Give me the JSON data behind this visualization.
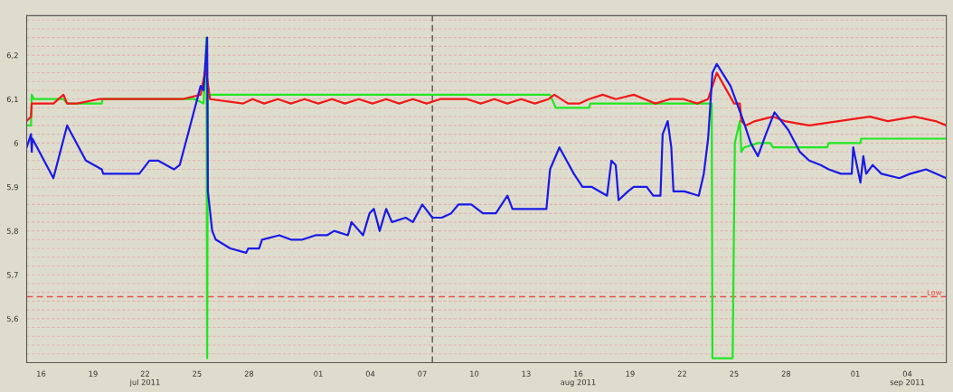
{
  "chart_data": {
    "type": "line",
    "xlim": [
      "2011-07-15T04:00",
      "2011-09-06T06:00"
    ],
    "ylim": [
      5.5,
      6.29
    ],
    "xticks": [
      {
        "value": "2011-07-16",
        "label": "16"
      },
      {
        "value": "2011-07-19",
        "label": "19"
      },
      {
        "value": "2011-07-22",
        "label": "22\njul 2011"
      },
      {
        "value": "2011-07-25",
        "label": "25"
      },
      {
        "value": "2011-07-28",
        "label": "28"
      },
      {
        "value": "2011-08-01",
        "label": "01"
      },
      {
        "value": "2011-08-04",
        "label": "04"
      },
      {
        "value": "2011-08-07",
        "label": "07"
      },
      {
        "value": "2011-08-10",
        "label": "10"
      },
      {
        "value": "2011-08-13",
        "label": "13"
      },
      {
        "value": "2011-08-16",
        "label": "16\naug 2011"
      },
      {
        "value": "2011-08-19",
        "label": "19"
      },
      {
        "value": "2011-08-22",
        "label": "22"
      },
      {
        "value": "2011-08-25",
        "label": "25"
      },
      {
        "value": "2011-08-28",
        "label": "28"
      },
      {
        "value": "2011-09-01",
        "label": "01"
      },
      {
        "value": "2011-09-04",
        "label": "04\nsep 2011"
      }
    ],
    "yticks": [
      {
        "value": 5.5,
        "label": null
      },
      {
        "value": 5.52,
        "label": null
      },
      {
        "value": 5.54,
        "label": null
      },
      {
        "value": 5.56,
        "label": null
      },
      {
        "value": 5.58,
        "label": null
      },
      {
        "value": 5.6,
        "label": "5,6"
      },
      {
        "value": 5.62,
        "label": null
      },
      {
        "value": 5.64,
        "label": null
      },
      {
        "value": 5.66,
        "label": null
      },
      {
        "value": 5.68,
        "label": null
      },
      {
        "value": 5.7,
        "label": "5,7"
      },
      {
        "value": 5.72,
        "label": null
      },
      {
        "value": 5.74,
        "label": null
      },
      {
        "value": 5.76,
        "label": null
      },
      {
        "value": 5.78,
        "label": null
      },
      {
        "value": 5.8,
        "label": "5,8"
      },
      {
        "value": 5.82,
        "label": null
      },
      {
        "value": 5.84,
        "label": null
      },
      {
        "value": 5.86,
        "label": null
      },
      {
        "value": 5.88,
        "label": null
      },
      {
        "value": 5.9,
        "label": "5,9"
      },
      {
        "value": 5.92,
        "label": null
      },
      {
        "value": 5.94,
        "label": null
      },
      {
        "value": 5.96,
        "label": null
      },
      {
        "value": 5.98,
        "label": null
      },
      {
        "value": 6.0,
        "label": "6"
      },
      {
        "value": 6.02,
        "label": null
      },
      {
        "value": 6.04,
        "label": null
      },
      {
        "value": 6.06,
        "label": null
      },
      {
        "value": 6.08,
        "label": null
      },
      {
        "value": 6.1,
        "label": "6,1"
      },
      {
        "value": 6.12,
        "label": null
      },
      {
        "value": 6.14,
        "label": null
      },
      {
        "value": 6.16,
        "label": null
      },
      {
        "value": 6.18,
        "label": null
      },
      {
        "value": 6.2,
        "label": "6,2"
      },
      {
        "value": 6.22,
        "label": null
      },
      {
        "value": 6.24,
        "label": null
      },
      {
        "value": 6.26,
        "label": null
      },
      {
        "value": 6.28,
        "label": null
      }
    ],
    "grid": "y",
    "ref_lines": [
      {
        "axis": "y",
        "value": 5.65,
        "label": "Low",
        "color": "#e85050",
        "line_style": "dashed"
      },
      {
        "axis": "x",
        "value": "2011-08-07T14:00",
        "color": "#555555",
        "line_style": "dashed"
      }
    ],
    "series": [
      {
        "color": "#22e622",
        "x": [
          "2011-07-15T04:00",
          "2011-07-15T10:00",
          "2011-07-15T11:00",
          "2011-07-15T14:00",
          "2011-07-17T07:00",
          "2011-07-17T12:00",
          "2011-07-19T12:00",
          "2011-07-19T13:00",
          "2011-07-24T21:00",
          "2011-07-25T09:00",
          "2011-07-25T13:00",
          "2011-07-25T14:00",
          "2011-07-25T15:00",
          "2011-08-14T09:00",
          "2011-08-14T17:00",
          "2011-08-16T15:00",
          "2011-08-16T17:00",
          "2011-08-23T17:00",
          "2011-08-23T18:00",
          "2011-08-24T22:00",
          "2011-08-25T01:00",
          "2011-08-25T08:00",
          "2011-08-25T10:00",
          "2011-08-25T14:00",
          "2011-08-26T09:00",
          "2011-08-27T02:00",
          "2011-08-27T06:00",
          "2011-08-30T09:00",
          "2011-08-30T11:00",
          "2011-09-01T07:00",
          "2011-09-01T08:00",
          "2011-09-06T06:00"
        ],
        "values": [
          6.04,
          6.04,
          6.11,
          6.1,
          6.1,
          6.09,
          6.09,
          6.1,
          6.1,
          6.09,
          6.24,
          5.51,
          6.11,
          6.11,
          6.08,
          6.08,
          6.09,
          6.09,
          5.51,
          5.51,
          6.0,
          6.05,
          5.98,
          5.99,
          6.0,
          6.0,
          5.99,
          5.99,
          6.0,
          6.0,
          6.01,
          6.01
        ]
      },
      {
        "color": "#f01818",
        "x": [
          "2011-07-15T04:00",
          "2011-07-15T10:00",
          "2011-07-15T11:00",
          "2011-07-16T05:00",
          "2011-07-16T17:00",
          "2011-07-17T07:00",
          "2011-07-17T12:00",
          "2011-07-18T02:00",
          "2011-07-19T08:00",
          "2011-07-20T16:00",
          "2011-07-22T11:00",
          "2011-07-24T04:00",
          "2011-07-25T05:00",
          "2011-07-25T12:00",
          "2011-07-25T18:00",
          "2011-07-27T16:00",
          "2011-07-28T05:00",
          "2011-07-28T21:00",
          "2011-07-29T16:00",
          "2011-07-30T10:00",
          "2011-07-31T05:00",
          "2011-08-01T00:00",
          "2011-08-01T19:00",
          "2011-08-02T13:00",
          "2011-08-03T08:00",
          "2011-08-04T03:00",
          "2011-08-04T22:00",
          "2011-08-05T16:00",
          "2011-08-06T11:00",
          "2011-08-07T06:00",
          "2011-08-08T01:00",
          "2011-08-08T19:00",
          "2011-08-09T14:00",
          "2011-08-10T09:00",
          "2011-08-11T04:00",
          "2011-08-11T22:00",
          "2011-08-12T17:00",
          "2011-08-13T12:00",
          "2011-08-14T07:00",
          "2011-08-14T15:00",
          "2011-08-15T10:00",
          "2011-08-16T02:00",
          "2011-08-16T15:00",
          "2011-08-17T10:00",
          "2011-08-18T04:00",
          "2011-08-19T05:00",
          "2011-08-19T20:00",
          "2011-08-20T11:00",
          "2011-08-21T07:00",
          "2011-08-22T02:00",
          "2011-08-22T21:00",
          "2011-08-23T12:00",
          "2011-08-24T00:00",
          "2011-08-25T00:00",
          "2011-08-25T08:00",
          "2011-08-25T10:00",
          "2011-08-25T16:00",
          "2011-08-26T05:00",
          "2011-08-27T06:00",
          "2011-08-27T22:00",
          "2011-08-29T08:00",
          "2011-08-31T01:00",
          "2011-09-01T20:00",
          "2011-09-02T21:00",
          "2011-09-04T10:00",
          "2011-09-05T15:00",
          "2011-09-06T06:00"
        ],
        "values": [
          6.05,
          6.06,
          6.09,
          6.09,
          6.09,
          6.11,
          6.09,
          6.09,
          6.1,
          6.1,
          6.1,
          6.1,
          6.11,
          6.17,
          6.1,
          6.09,
          6.1,
          6.09,
          6.1,
          6.09,
          6.1,
          6.09,
          6.1,
          6.09,
          6.1,
          6.09,
          6.1,
          6.09,
          6.1,
          6.09,
          6.1,
          6.1,
          6.1,
          6.09,
          6.1,
          6.09,
          6.1,
          6.09,
          6.1,
          6.11,
          6.09,
          6.09,
          6.1,
          6.11,
          6.1,
          6.11,
          6.1,
          6.09,
          6.1,
          6.1,
          6.09,
          6.1,
          6.16,
          6.09,
          6.09,
          6.05,
          6.04,
          6.05,
          6.06,
          6.05,
          6.04,
          6.05,
          6.06,
          6.05,
          6.06,
          6.05,
          6.04
        ]
      },
      {
        "color": "#1a1ae6",
        "x": [
          "2011-07-15T04:00",
          "2011-07-15T10:00",
          "2011-07-15T11:00",
          "2011-07-15T12:00",
          "2011-07-16T17:00",
          "2011-07-17T12:00",
          "2011-07-18T14:00",
          "2011-07-19T12:00",
          "2011-07-19T14:00",
          "2011-07-21T16:00",
          "2011-07-22T06:00",
          "2011-07-22T18:00",
          "2011-07-23T16:00",
          "2011-07-24T00:00",
          "2011-07-24T13:00",
          "2011-07-25T05:00",
          "2011-07-25T09:00",
          "2011-07-25T14:00",
          "2011-07-25T15:00",
          "2011-07-25T21:00",
          "2011-07-26T02:00",
          "2011-07-26T22:00",
          "2011-07-27T20:00",
          "2011-07-27T23:00",
          "2011-07-28T14:00",
          "2011-07-28T18:00",
          "2011-07-29T18:00",
          "2011-07-30T10:00",
          "2011-07-31T02:00",
          "2011-07-31T20:00",
          "2011-08-01T12:00",
          "2011-08-01T22:00",
          "2011-08-02T17:00",
          "2011-08-02T22:00",
          "2011-08-03T14:00",
          "2011-08-03T23:00",
          "2011-08-04T05:00",
          "2011-08-04T13:00",
          "2011-08-04T22:00",
          "2011-08-05T06:00",
          "2011-08-06T01:00",
          "2011-08-06T11:00",
          "2011-08-07T00:00",
          "2011-08-07T14:00",
          "2011-08-08T03:00",
          "2011-08-08T16:00",
          "2011-08-09T02:00",
          "2011-08-09T20:00",
          "2011-08-10T12:00",
          "2011-08-11T06:00",
          "2011-08-11T22:00",
          "2011-08-12T05:00",
          "2011-08-12T23:00",
          "2011-08-14T04:00",
          "2011-08-14T09:00",
          "2011-08-14T22:00",
          "2011-08-15T08:00",
          "2011-08-15T18:00",
          "2011-08-16T06:00",
          "2011-08-16T19:00",
          "2011-08-17T16:00",
          "2011-08-17T22:00",
          "2011-08-18T04:00",
          "2011-08-18T08:00",
          "2011-08-18T21:00",
          "2011-08-19T05:00",
          "2011-08-19T23:00",
          "2011-08-20T08:00",
          "2011-08-20T18:00",
          "2011-08-20T21:00",
          "2011-08-21T04:00",
          "2011-08-21T09:00",
          "2011-08-21T12:00",
          "2011-08-22T03:00",
          "2011-08-22T23:00",
          "2011-08-23T06:00",
          "2011-08-23T12:00",
          "2011-08-23T18:00",
          "2011-08-24T00:00",
          "2011-08-24T19:00",
          "2011-08-25T13:00",
          "2011-08-25T23:00",
          "2011-08-26T09:00",
          "2011-08-26T20:00",
          "2011-08-27T08:00",
          "2011-08-28T03:00",
          "2011-08-28T19:00",
          "2011-08-29T08:00",
          "2011-08-30T00:00",
          "2011-08-30T11:00",
          "2011-08-31T04:00",
          "2011-08-31T19:00",
          "2011-08-31T21:00",
          "2011-09-01T07:00",
          "2011-09-01T11:00",
          "2011-09-01T15:00",
          "2011-09-02T00:00",
          "2011-09-02T12:00",
          "2011-09-03T13:00",
          "2011-09-04T04:00",
          "2011-09-05T02:00",
          "2011-09-06T06:00"
        ],
        "values": [
          5.99,
          6.02,
          5.98,
          6.01,
          5.92,
          6.04,
          5.96,
          5.94,
          5.93,
          5.93,
          5.96,
          5.96,
          5.94,
          5.95,
          6.03,
          6.13,
          6.12,
          6.24,
          5.89,
          5.8,
          5.78,
          5.76,
          5.75,
          5.76,
          5.76,
          5.78,
          5.79,
          5.78,
          5.78,
          5.79,
          5.79,
          5.8,
          5.79,
          5.82,
          5.79,
          5.84,
          5.85,
          5.8,
          5.85,
          5.82,
          5.83,
          5.82,
          5.86,
          5.83,
          5.83,
          5.84,
          5.86,
          5.86,
          5.84,
          5.84,
          5.88,
          5.85,
          5.85,
          5.85,
          5.94,
          5.99,
          5.96,
          5.93,
          5.9,
          5.9,
          5.88,
          5.96,
          5.95,
          5.87,
          5.89,
          5.9,
          5.9,
          5.88,
          5.88,
          6.02,
          6.05,
          5.99,
          5.89,
          5.89,
          5.88,
          5.93,
          6.01,
          6.16,
          6.18,
          6.13,
          6.05,
          6.0,
          5.97,
          6.02,
          6.07,
          6.03,
          5.98,
          5.96,
          5.95,
          5.94,
          5.93,
          5.93,
          5.99,
          5.91,
          5.97,
          5.93,
          5.95,
          5.93,
          5.92,
          5.93,
          5.94,
          5.92
        ]
      }
    ]
  }
}
